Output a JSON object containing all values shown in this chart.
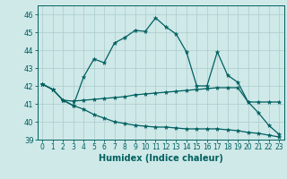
{
  "xlabel": "Humidex (Indice chaleur)",
  "xlim": [
    -0.5,
    23.5
  ],
  "ylim": [
    39,
    46.5
  ],
  "yticks": [
    39,
    40,
    41,
    42,
    43,
    44,
    45,
    46
  ],
  "xticks": [
    0,
    1,
    2,
    3,
    4,
    5,
    6,
    7,
    8,
    9,
    10,
    11,
    12,
    13,
    14,
    15,
    16,
    17,
    18,
    19,
    20,
    21,
    22,
    23
  ],
  "background_color": "#cfe8e8",
  "grid_color": "#aacccc",
  "line_color": "#006060",
  "line1_x": [
    0,
    1,
    2,
    3,
    4,
    5,
    6,
    7,
    8,
    9,
    10,
    11,
    12,
    13,
    14,
    15,
    16,
    17,
    18,
    19,
    20,
    21,
    22,
    23
  ],
  "line1_y": [
    42.1,
    41.8,
    41.2,
    40.9,
    42.5,
    43.5,
    43.3,
    44.4,
    44.7,
    45.1,
    45.05,
    45.8,
    45.3,
    44.9,
    43.9,
    42.0,
    42.0,
    43.9,
    42.6,
    42.2,
    41.1,
    40.5,
    39.8,
    39.3
  ],
  "line2_x": [
    0,
    1,
    2,
    3,
    4,
    5,
    6,
    7,
    8,
    9,
    10,
    11,
    12,
    13,
    14,
    15,
    16,
    17,
    18,
    19,
    20,
    21,
    22,
    23
  ],
  "line2_y": [
    42.1,
    41.8,
    41.2,
    41.15,
    41.2,
    41.25,
    41.3,
    41.35,
    41.4,
    41.5,
    41.55,
    41.6,
    41.65,
    41.7,
    41.75,
    41.8,
    41.85,
    41.9,
    41.9,
    41.9,
    41.1,
    41.1,
    41.1,
    41.1
  ],
  "line3_x": [
    0,
    1,
    2,
    3,
    4,
    5,
    6,
    7,
    8,
    9,
    10,
    11,
    12,
    13,
    14,
    15,
    16,
    17,
    18,
    19,
    20,
    21,
    22,
    23
  ],
  "line3_y": [
    42.1,
    41.8,
    41.2,
    40.9,
    40.7,
    40.4,
    40.2,
    40.0,
    39.9,
    39.8,
    39.75,
    39.7,
    39.7,
    39.65,
    39.6,
    39.6,
    39.6,
    39.6,
    39.55,
    39.5,
    39.4,
    39.35,
    39.25,
    39.15
  ]
}
